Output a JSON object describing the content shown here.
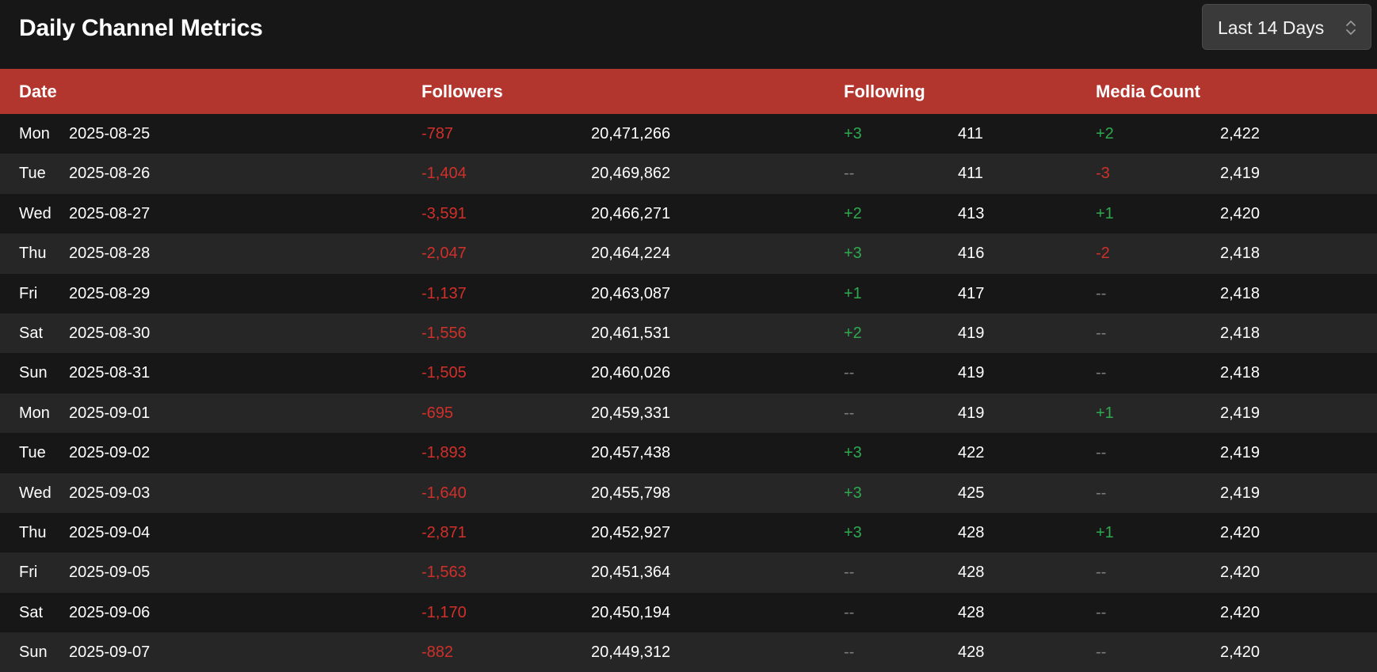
{
  "header": {
    "title": "Daily Channel Metrics",
    "range_select": {
      "selected": "Last 14 Days"
    }
  },
  "table": {
    "columns": {
      "date": "Date",
      "followers": "Followers",
      "following": "Following",
      "media_count": "Media Count"
    },
    "rows": [
      {
        "day": "Mon",
        "date": "2025-08-25",
        "followers_delta": "-787",
        "followers_total": "20,471,266",
        "following_delta": "+3",
        "following_total": "411",
        "media_delta": "+2",
        "media_total": "2,422"
      },
      {
        "day": "Tue",
        "date": "2025-08-26",
        "followers_delta": "-1,404",
        "followers_total": "20,469,862",
        "following_delta": "--",
        "following_total": "411",
        "media_delta": "-3",
        "media_total": "2,419"
      },
      {
        "day": "Wed",
        "date": "2025-08-27",
        "followers_delta": "-3,591",
        "followers_total": "20,466,271",
        "following_delta": "+2",
        "following_total": "413",
        "media_delta": "+1",
        "media_total": "2,420"
      },
      {
        "day": "Thu",
        "date": "2025-08-28",
        "followers_delta": "-2,047",
        "followers_total": "20,464,224",
        "following_delta": "+3",
        "following_total": "416",
        "media_delta": "-2",
        "media_total": "2,418"
      },
      {
        "day": "Fri",
        "date": "2025-08-29",
        "followers_delta": "-1,137",
        "followers_total": "20,463,087",
        "following_delta": "+1",
        "following_total": "417",
        "media_delta": "--",
        "media_total": "2,418"
      },
      {
        "day": "Sat",
        "date": "2025-08-30",
        "followers_delta": "-1,556",
        "followers_total": "20,461,531",
        "following_delta": "+2",
        "following_total": "419",
        "media_delta": "--",
        "media_total": "2,418"
      },
      {
        "day": "Sun",
        "date": "2025-08-31",
        "followers_delta": "-1,505",
        "followers_total": "20,460,026",
        "following_delta": "--",
        "following_total": "419",
        "media_delta": "--",
        "media_total": "2,418"
      },
      {
        "day": "Mon",
        "date": "2025-09-01",
        "followers_delta": "-695",
        "followers_total": "20,459,331",
        "following_delta": "--",
        "following_total": "419",
        "media_delta": "+1",
        "media_total": "2,419"
      },
      {
        "day": "Tue",
        "date": "2025-09-02",
        "followers_delta": "-1,893",
        "followers_total": "20,457,438",
        "following_delta": "+3",
        "following_total": "422",
        "media_delta": "--",
        "media_total": "2,419"
      },
      {
        "day": "Wed",
        "date": "2025-09-03",
        "followers_delta": "-1,640",
        "followers_total": "20,455,798",
        "following_delta": "+3",
        "following_total": "425",
        "media_delta": "--",
        "media_total": "2,419"
      },
      {
        "day": "Thu",
        "date": "2025-09-04",
        "followers_delta": "-2,871",
        "followers_total": "20,452,927",
        "following_delta": "+3",
        "following_total": "428",
        "media_delta": "+1",
        "media_total": "2,420"
      },
      {
        "day": "Fri",
        "date": "2025-09-05",
        "followers_delta": "-1,563",
        "followers_total": "20,451,364",
        "following_delta": "--",
        "following_total": "428",
        "media_delta": "--",
        "media_total": "2,420"
      },
      {
        "day": "Sat",
        "date": "2025-09-06",
        "followers_delta": "-1,170",
        "followers_total": "20,450,194",
        "following_delta": "--",
        "following_total": "428",
        "media_delta": "--",
        "media_total": "2,420"
      },
      {
        "day": "Sun",
        "date": "2025-09-07",
        "followers_delta": "-882",
        "followers_total": "20,449,312",
        "following_delta": "--",
        "following_total": "428",
        "media_delta": "--",
        "media_total": "2,420"
      }
    ]
  },
  "colors": {
    "header_bar": "#b3362e",
    "negative": "#d0302a",
    "positive": "#2fa84f",
    "neutral": "#7e7e7e",
    "row_dark": "#171717",
    "row_light": "#262626"
  },
  "icons": {
    "range_select": "chevron-up-down-icon"
  }
}
